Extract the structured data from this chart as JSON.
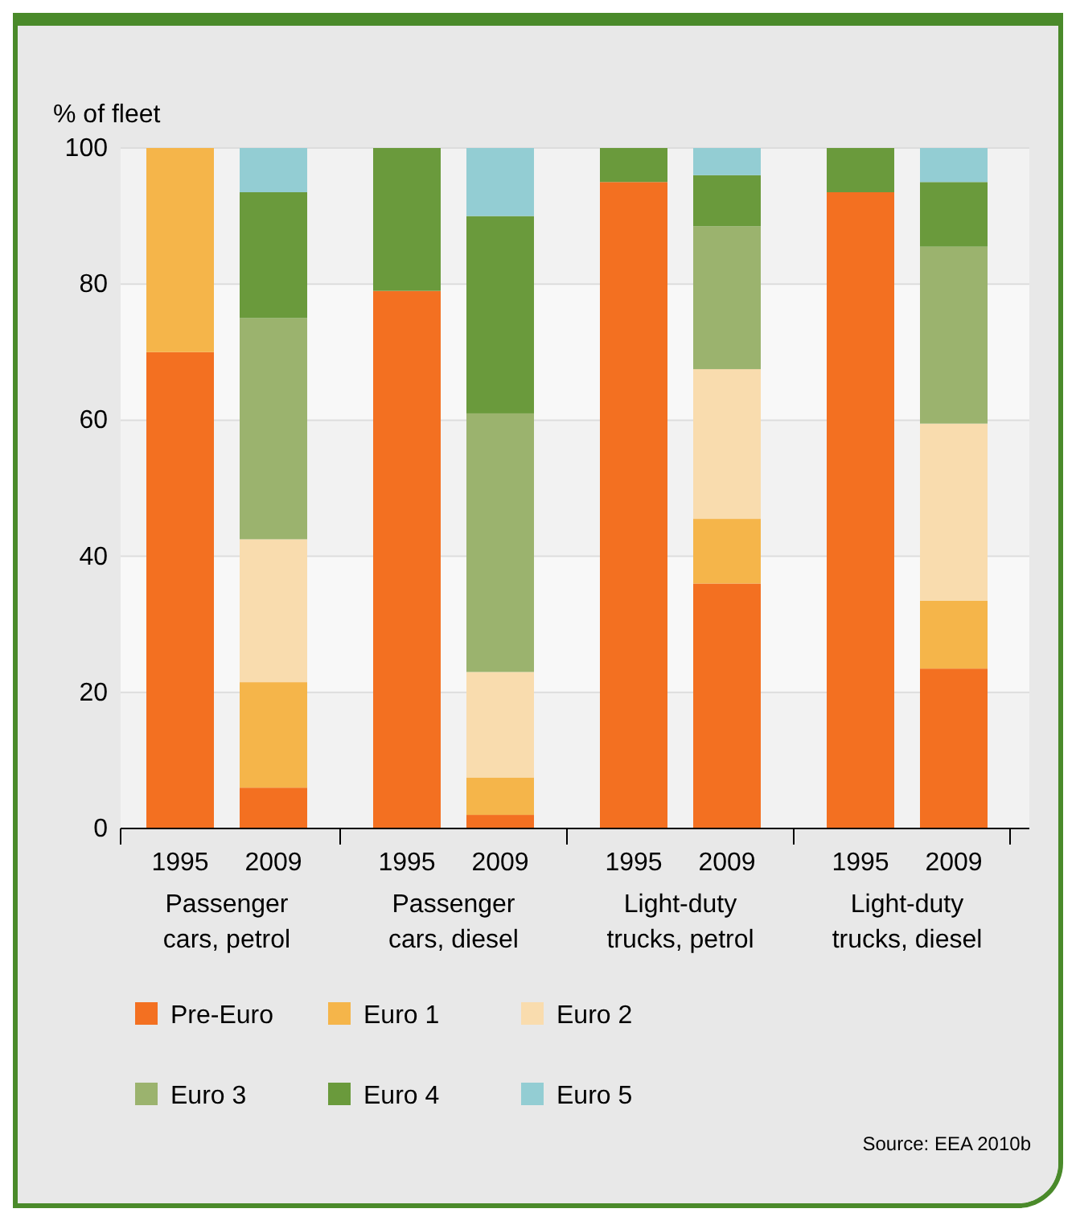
{
  "chart_data": {
    "type": "bar",
    "stacked": true,
    "ylabel": "% of fleet",
    "categories": [
      "1995",
      "2009",
      "1995",
      "2009",
      "1995",
      "2009",
      "1995",
      "2009"
    ],
    "series": [
      {
        "name": "Pre-Euro",
        "color": "#f37021",
        "values": [
          70,
          6,
          79,
          2,
          95,
          36,
          93.5,
          23.5
        ]
      },
      {
        "name": "Euro 1",
        "color": "#f5b54a",
        "values": [
          30,
          15.5,
          0,
          5.5,
          0,
          9.5,
          0,
          10
        ]
      },
      {
        "name": "Euro 2",
        "color": "#f9dcae",
        "values": [
          0,
          21,
          0,
          15.5,
          0,
          22,
          0,
          26
        ]
      },
      {
        "name": "Euro 3",
        "color": "#9bb36e",
        "values": [
          0,
          32.5,
          0,
          38,
          0,
          21,
          0,
          26
        ]
      },
      {
        "name": "Euro 4",
        "color": "#6a9a3c",
        "values": [
          0,
          18.5,
          21,
          29,
          5,
          7.5,
          6.5,
          9.5
        ]
      },
      {
        "name": "Euro 5",
        "color": "#93cdd3",
        "values": [
          0,
          6.5,
          0,
          10,
          0,
          4,
          0,
          5
        ]
      }
    ],
    "ylim": [
      0,
      100
    ],
    "yticks": [
      0,
      20,
      40,
      60,
      80,
      100
    ],
    "grid": "y",
    "legend": "bottom",
    "annotations": [
      "Passenger cars, petrol",
      "Passenger cars, diesel",
      "Light-duty trucks, petrol",
      "Light-duty trucks, diesel",
      "Source: EEA 2010b"
    ]
  }
}
